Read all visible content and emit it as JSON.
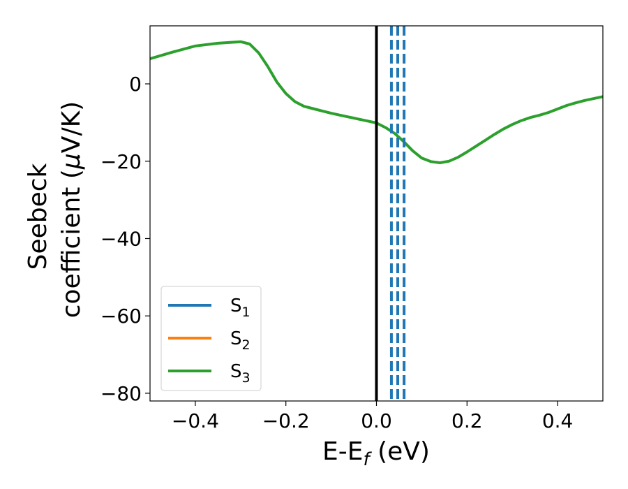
{
  "chart_data": {
    "type": "line",
    "xlabel": {
      "main": "E-E",
      "sub": "f",
      "unit": " (eV)"
    },
    "ylabel": {
      "line1": "Seebeck",
      "line2": "coefficient  (",
      "mu": "μ",
      "line2_end": "V/K)"
    },
    "xlim": [
      -0.5,
      0.5
    ],
    "ylim": [
      -82,
      15
    ],
    "xticks": [
      -0.4,
      -0.2,
      0.0,
      0.2,
      0.4
    ],
    "xtick_labels": [
      "−0.4",
      "−0.2",
      "0.0",
      "0.2",
      "0.4"
    ],
    "yticks": [
      0,
      -20,
      -40,
      -60,
      -80
    ],
    "ytick_labels": [
      "0",
      "−20",
      "−40",
      "−60",
      "−80"
    ],
    "grid": false,
    "legend_position": "lower-left",
    "legend": [
      {
        "base": "S",
        "sub": "1",
        "color": "#1f77b4"
      },
      {
        "base": "S",
        "sub": "2",
        "color": "#ff7f0e"
      },
      {
        "base": "S",
        "sub": "3",
        "color": "#2ca02c"
      }
    ],
    "series": [
      {
        "color": "#2ca02c",
        "draw_order": 3,
        "x": [
          -0.5,
          -0.45,
          -0.4,
          -0.35,
          -0.3,
          -0.28,
          -0.26,
          -0.24,
          -0.22,
          -0.2,
          -0.18,
          -0.16,
          -0.14,
          -0.12,
          -0.1,
          -0.08,
          -0.06,
          -0.04,
          -0.02,
          0.0,
          0.02,
          0.04,
          0.06,
          0.08,
          0.1,
          0.12,
          0.14,
          0.16,
          0.18,
          0.2,
          0.22,
          0.24,
          0.26,
          0.28,
          0.3,
          0.32,
          0.34,
          0.36,
          0.38,
          0.4,
          0.42,
          0.44,
          0.46,
          0.48,
          0.5
        ],
        "y": [
          6.5,
          8.2,
          9.8,
          10.5,
          10.9,
          10.3,
          8.0,
          4.5,
          0.5,
          -2.5,
          -4.6,
          -5.8,
          -6.4,
          -7.0,
          -7.6,
          -8.1,
          -8.6,
          -9.1,
          -9.6,
          -10.1,
          -11.3,
          -12.8,
          -14.9,
          -17.3,
          -19.2,
          -20.1,
          -20.4,
          -20.0,
          -19.0,
          -17.6,
          -16.1,
          -14.6,
          -13.1,
          -11.7,
          -10.5,
          -9.5,
          -8.7,
          -8.1,
          -7.4,
          -6.5,
          -5.6,
          -4.9,
          -4.3,
          -3.8,
          -3.3
        ]
      }
    ],
    "vlines": [
      {
        "x": 0.0,
        "color": "#000000",
        "style": "solid"
      },
      {
        "x": 0.033,
        "color": "#1f77b4",
        "style": "dashed"
      },
      {
        "x": 0.047,
        "color": "#1f77b4",
        "style": "dashed"
      },
      {
        "x": 0.061,
        "color": "#1f77b4",
        "style": "dashed"
      }
    ]
  }
}
